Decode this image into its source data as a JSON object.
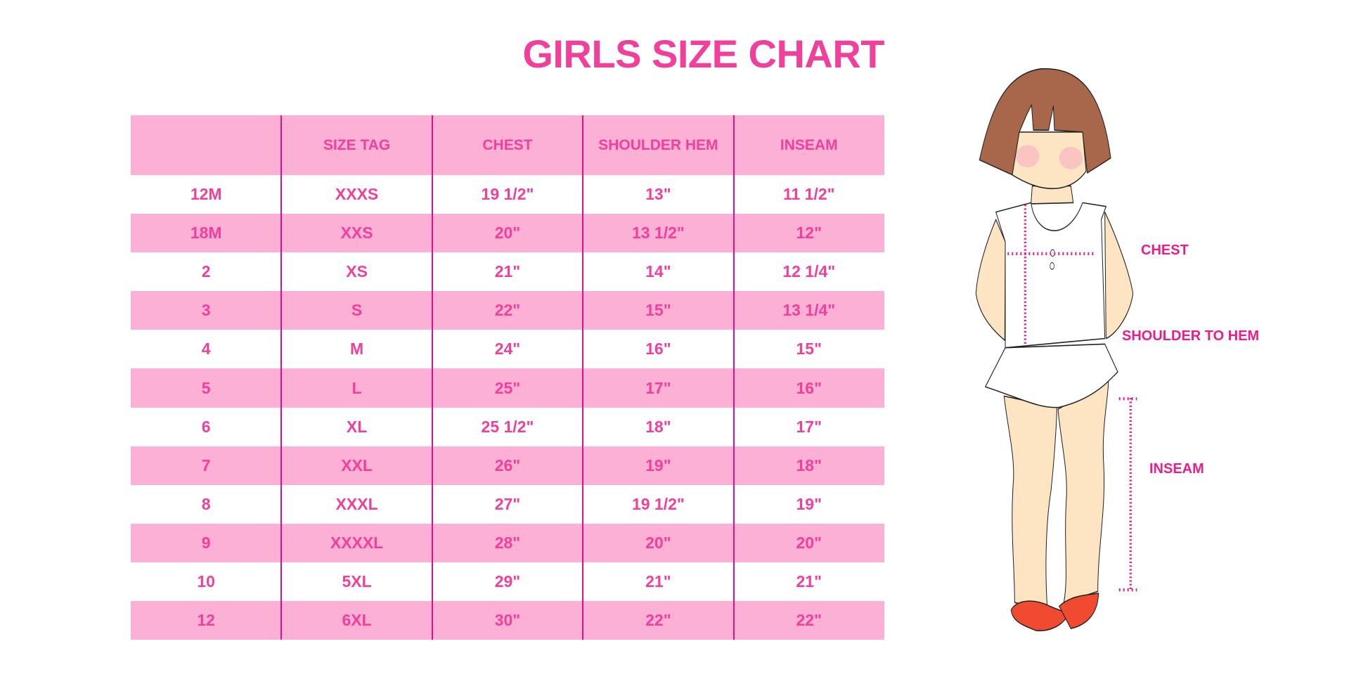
{
  "title": "GIRLS SIZE CHART",
  "colors": {
    "accent": "#f23f9c",
    "row_pink": "#fcb0d5",
    "divider": "#e0108a",
    "hair": "#a8664a",
    "skin": "#fde5c4",
    "shoes": "#f04a30"
  },
  "table": {
    "headers": [
      "",
      "SIZE TAG",
      "CHEST",
      "SHOULDER HEM",
      "INSEAM"
    ],
    "rows": [
      [
        "12M",
        "XXXS",
        "19 1/2\"",
        "13\"",
        "11 1/2\""
      ],
      [
        "18M",
        "XXS",
        "20\"",
        "13 1/2\"",
        "12\""
      ],
      [
        "2",
        "XS",
        "21\"",
        "14\"",
        "12 1/4\""
      ],
      [
        "3",
        "S",
        "22\"",
        "15\"",
        "13 1/4\""
      ],
      [
        "4",
        "M",
        "24\"",
        "16\"",
        "15\""
      ],
      [
        "5",
        "L",
        "25\"",
        "17\"",
        "16\""
      ],
      [
        "6",
        "XL",
        "25 1/2\"",
        "18\"",
        "17\""
      ],
      [
        "7",
        "XXL",
        "26\"",
        "19\"",
        "18\""
      ],
      [
        "8",
        "XXXL",
        "27\"",
        "19 1/2\"",
        "19\""
      ],
      [
        "9",
        "XXXXL",
        "28\"",
        "20\"",
        "20\""
      ],
      [
        "10",
        "5XL",
        "29\"",
        "21\"",
        "21\""
      ],
      [
        "12",
        "6XL",
        "30\"",
        "22\"",
        "22\""
      ]
    ]
  },
  "figure": {
    "labels": {
      "chest": "CHEST",
      "shoulder": "SHOULDER TO HEM",
      "inseam": "INSEAM"
    }
  }
}
